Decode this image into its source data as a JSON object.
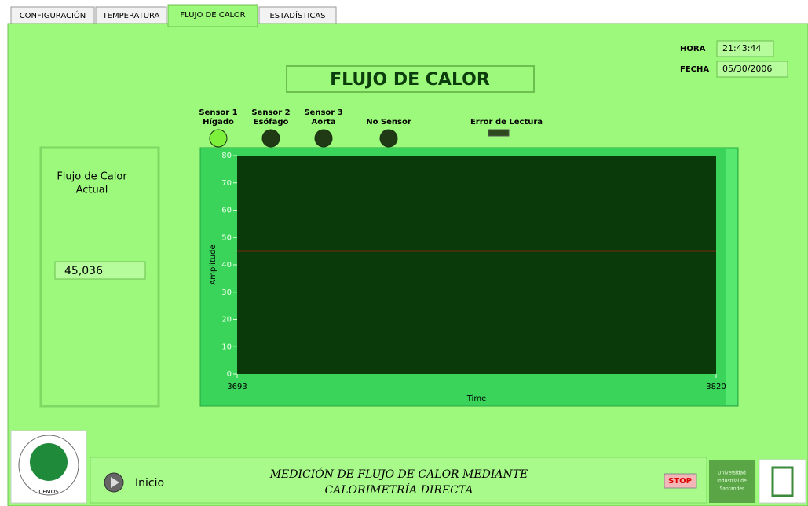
{
  "tabs": [
    "CONFIGURACIÓN",
    "TEMPERATURA",
    "FLUJO DE CALOR",
    "ESTADÍSTICAS"
  ],
  "clock": {
    "hora_label": "HORA",
    "hora": "21:43:44",
    "fecha_label": "FECHA",
    "fecha": "05/30/2006"
  },
  "title": "FLUJO DE CALOR",
  "sensors": [
    {
      "lines": [
        "Sensor 1",
        "Hígado"
      ],
      "color": "#7cf03a"
    },
    {
      "lines": [
        "Sensor 2",
        "Esófago"
      ],
      "color": "#1f3a14"
    },
    {
      "lines": [
        "Sensor 3",
        "Aorta"
      ],
      "color": "#1f3a14"
    },
    {
      "lines": [
        "No Sensor"
      ],
      "color": "#1f3a14"
    }
  ],
  "error": {
    "label": "Error de Lectura",
    "color": "#2c4a1c"
  },
  "readout": {
    "lines": [
      "Flujo de Calor",
      "Actual"
    ],
    "value": "45,036"
  },
  "chart_data": {
    "type": "line",
    "x": [
      3693,
      3820
    ],
    "values": [
      45.036,
      45.036
    ],
    "color": "#e01010",
    "xlim": [
      3693,
      3820
    ],
    "xticks": [
      3693,
      3820
    ],
    "ylim": [
      0,
      80
    ],
    "yticks": [
      0,
      10,
      20,
      30,
      40,
      50,
      60,
      70,
      80
    ],
    "x_label": "Time",
    "y_label": "Amplitude",
    "grid": false
  },
  "footer": {
    "button": "Inicio",
    "caption": [
      "MEDICIÓN DE FLUJO DE CALOR MEDIANTE",
      "CALORIMETRÍA DIRECTA"
    ],
    "stop": "STOP",
    "logo": "CEMOS",
    "university": [
      "Universidad",
      "Industrial de",
      "Santander"
    ]
  }
}
